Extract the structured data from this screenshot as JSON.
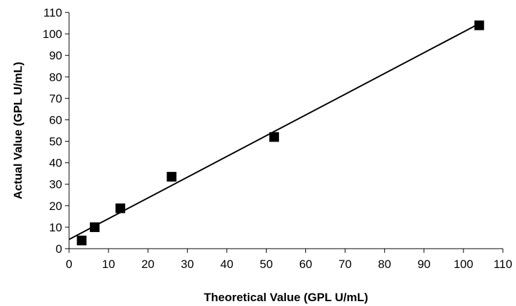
{
  "chart_data": {
    "type": "scatter",
    "title": "",
    "xlabel": "Theoretical Value (GPL U/mL)",
    "ylabel": "Actual Value (GPL U/mL)",
    "xlim": [
      0,
      110
    ],
    "ylim": [
      0,
      110
    ],
    "x_ticks": [
      0,
      10,
      20,
      30,
      40,
      50,
      60,
      70,
      80,
      90,
      100,
      110
    ],
    "y_ticks": [
      0,
      10,
      20,
      30,
      40,
      50,
      60,
      70,
      80,
      90,
      100,
      110
    ],
    "grid": false,
    "legend": "none",
    "marker": "square",
    "marker_color": "#000000",
    "line_color": "#000000",
    "series": [
      {
        "points": [
          {
            "x": 3.2,
            "y": 3.8
          },
          {
            "x": 6.5,
            "y": 10.0
          },
          {
            "x": 13.0,
            "y": 18.8
          },
          {
            "x": 26.0,
            "y": 33.5
          },
          {
            "x": 52.0,
            "y": 52.0
          },
          {
            "x": 104.0,
            "y": 104.0
          }
        ]
      }
    ],
    "trendline": {
      "type": "linear",
      "slope": 0.966,
      "intercept": 4.3,
      "x_range": [
        0,
        104
      ]
    }
  }
}
